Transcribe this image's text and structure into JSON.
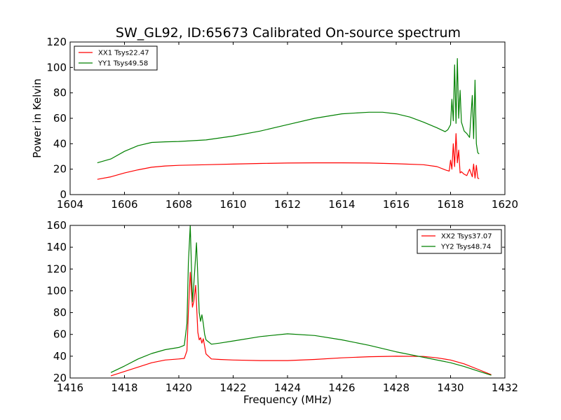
{
  "chart_data": [
    {
      "type": "line",
      "title": "SW_GL92, ID:65673 Calibrated On-source spectrum",
      "xlabel": "",
      "ylabel": "Power in Kelvin",
      "xlim": [
        1604,
        1620
      ],
      "ylim": [
        0,
        120
      ],
      "xticks": [
        "1604",
        "1606",
        "1608",
        "1610",
        "1612",
        "1614",
        "1616",
        "1618",
        "1620"
      ],
      "yticks": [
        "0",
        "20",
        "40",
        "60",
        "80",
        "100",
        "120"
      ],
      "legend_position": "top-left",
      "series": [
        {
          "name": "XX1 Tsys22.47",
          "color": "#ff0000",
          "x": [
            1605.0,
            1605.5,
            1606.0,
            1606.5,
            1607.0,
            1607.5,
            1608.0,
            1609.0,
            1610.0,
            1611.0,
            1612.0,
            1613.0,
            1614.0,
            1615.0,
            1616.0,
            1617.0,
            1617.5,
            1617.8,
            1617.95,
            1618.0,
            1618.05,
            1618.1,
            1618.15,
            1618.2,
            1618.25,
            1618.3,
            1618.35,
            1618.4,
            1618.5,
            1618.6,
            1618.7,
            1618.8,
            1618.85,
            1618.9,
            1618.95,
            1619.0,
            1619.05
          ],
          "y": [
            12,
            14,
            17,
            19.5,
            21.5,
            22.5,
            23,
            23.5,
            24,
            24.5,
            24.8,
            25,
            25,
            24.8,
            24.3,
            23.5,
            22,
            19.5,
            18.5,
            27,
            20,
            40,
            22,
            48,
            25,
            35,
            17,
            18,
            16,
            15,
            20,
            14,
            24,
            13,
            23,
            13,
            12.5
          ]
        },
        {
          "name": "YY1 Tsys49.58",
          "color": "#008000",
          "x": [
            1605.0,
            1605.5,
            1606.0,
            1606.5,
            1607.0,
            1607.5,
            1608.0,
            1609.0,
            1610.0,
            1611.0,
            1612.0,
            1613.0,
            1614.0,
            1615.0,
            1615.5,
            1616.0,
            1616.5,
            1617.0,
            1617.5,
            1617.8,
            1617.9,
            1618.0,
            1618.05,
            1618.1,
            1618.15,
            1618.2,
            1618.25,
            1618.3,
            1618.35,
            1618.4,
            1618.5,
            1618.6,
            1618.7,
            1618.8,
            1618.85,
            1618.9,
            1618.95,
            1619.0,
            1619.05
          ],
          "y": [
            25,
            28,
            34,
            38.5,
            41,
            41.5,
            41.8,
            43,
            46,
            50,
            55,
            60,
            63.5,
            64.8,
            64.8,
            63.5,
            61,
            57,
            52.5,
            49.5,
            51,
            55,
            75,
            58,
            102,
            56,
            107,
            60,
            82,
            57,
            50,
            48,
            45,
            78,
            44,
            90,
            40,
            33,
            32
          ]
        }
      ]
    },
    {
      "type": "line",
      "title": "",
      "xlabel": "Frequency (MHz)",
      "ylabel": "",
      "xlim": [
        1416,
        1432
      ],
      "ylim": [
        20,
        160
      ],
      "xticks": [
        "1416",
        "1418",
        "1420",
        "1422",
        "1424",
        "1426",
        "1428",
        "1430",
        "1432"
      ],
      "yticks": [
        "20",
        "40",
        "60",
        "80",
        "100",
        "120",
        "140",
        "160"
      ],
      "legend_position": "top-right",
      "series": [
        {
          "name": "XX2 Tsys37.07",
          "color": "#ff0000",
          "x": [
            1417.5,
            1418.0,
            1418.5,
            1419.0,
            1419.5,
            1420.0,
            1420.2,
            1420.3,
            1420.35,
            1420.42,
            1420.5,
            1420.55,
            1420.62,
            1420.7,
            1420.75,
            1420.8,
            1420.85,
            1420.9,
            1421.0,
            1421.2,
            1421.5,
            1422.0,
            1423.0,
            1424.0,
            1425.0,
            1426.0,
            1427.0,
            1428.0,
            1429.0,
            1429.5,
            1430.0,
            1430.5,
            1431.0,
            1431.5
          ],
          "y": [
            22,
            26,
            30,
            34,
            36.5,
            37.5,
            38,
            45,
            80,
            117,
            85,
            90,
            105,
            62,
            55,
            57,
            52,
            56,
            42,
            37.5,
            37,
            36.5,
            36,
            36,
            37,
            38.5,
            39.5,
            40,
            39.8,
            38.5,
            36.5,
            33,
            28,
            23
          ]
        },
        {
          "name": "YY2 Tsys48.74",
          "color": "#008000",
          "x": [
            1417.5,
            1418.0,
            1418.5,
            1419.0,
            1419.5,
            1420.0,
            1420.2,
            1420.3,
            1420.35,
            1420.42,
            1420.5,
            1420.55,
            1420.65,
            1420.75,
            1420.8,
            1420.85,
            1420.9,
            1420.95,
            1421.0,
            1421.2,
            1421.5,
            1422.0,
            1423.0,
            1424.0,
            1425.0,
            1426.0,
            1427.0,
            1428.0,
            1429.0,
            1430.0,
            1430.5,
            1431.0,
            1431.5
          ],
          "y": [
            25,
            31,
            37.5,
            42.5,
            46,
            48,
            50,
            70,
            125,
            160,
            90,
            105,
            144,
            80,
            72,
            78,
            70,
            60,
            55,
            51,
            52,
            54,
            58,
            60.5,
            59,
            55,
            50,
            44,
            39,
            34,
            30.5,
            26.5,
            22.5
          ]
        }
      ]
    }
  ]
}
